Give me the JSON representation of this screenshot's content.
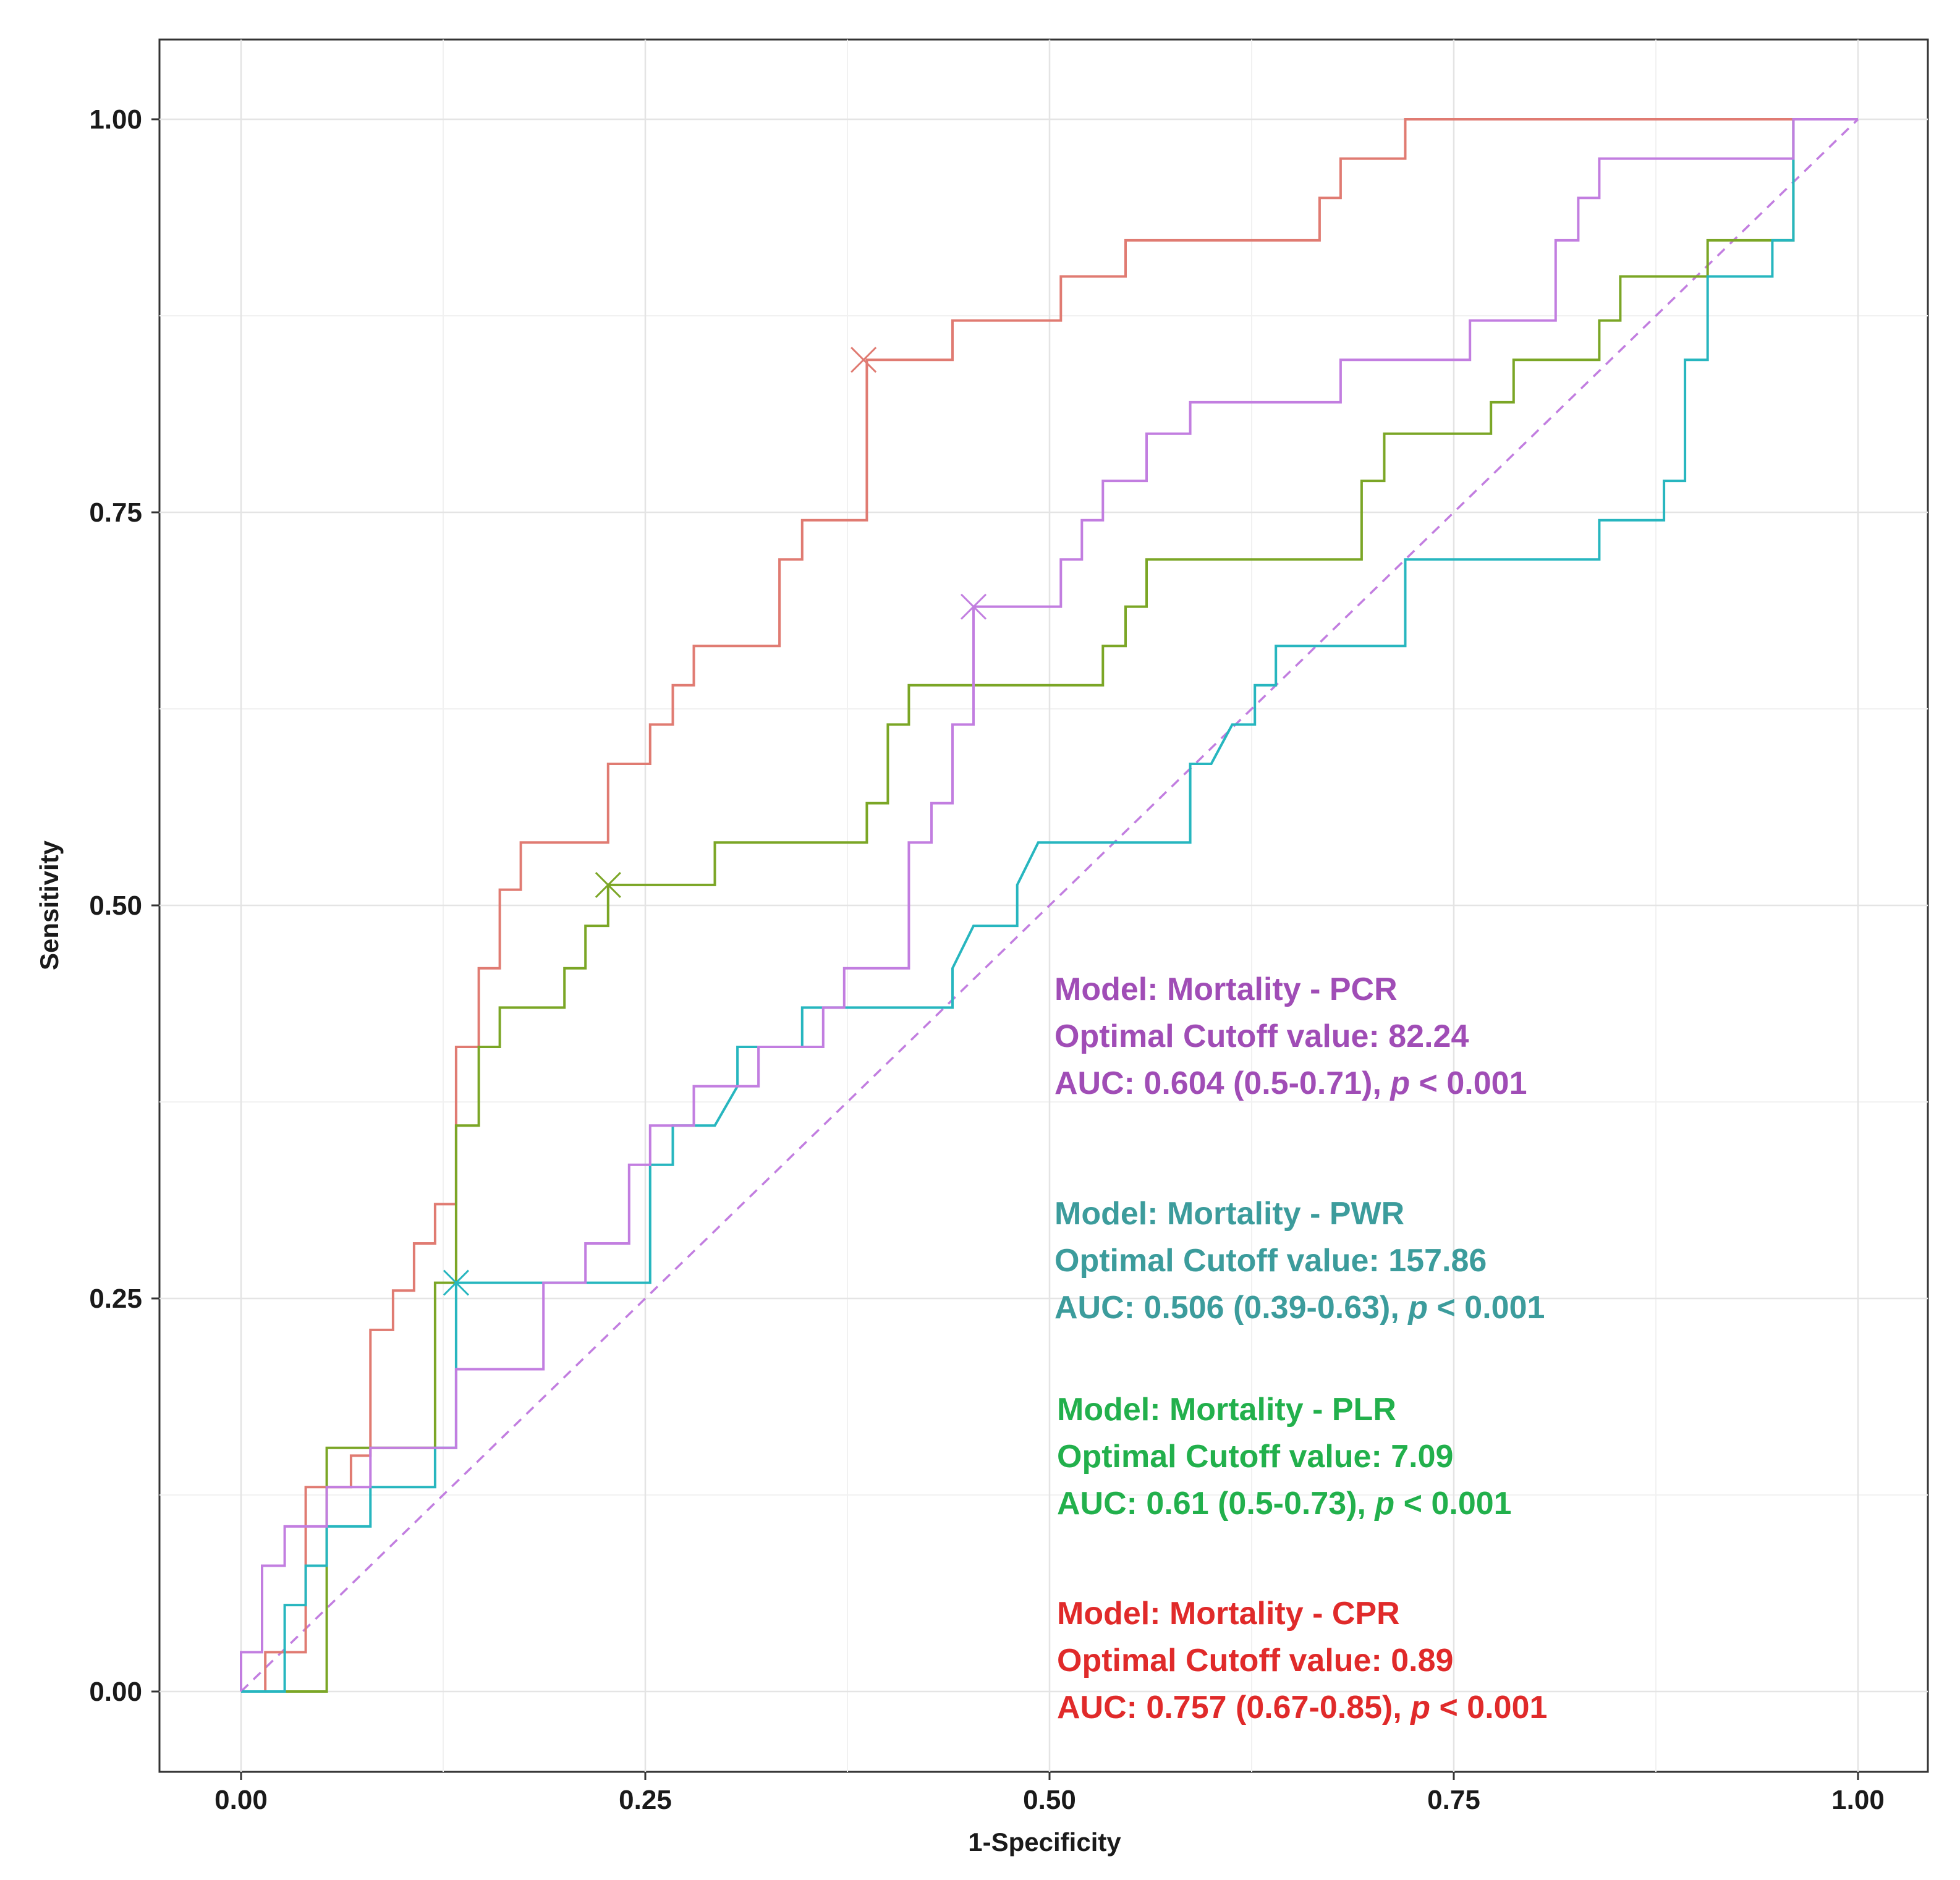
{
  "chart_data": {
    "type": "line",
    "title": "",
    "xlabel": "1-Specificity",
    "ylabel": "Sensitivity",
    "xlim": [
      0,
      1
    ],
    "ylim": [
      0,
      1
    ],
    "x_ticks": [
      "0.00",
      "0.25",
      "0.50",
      "0.75",
      "1.00"
    ],
    "y_ticks": [
      "0.00",
      "0.25",
      "0.50",
      "0.75",
      "1.00"
    ],
    "grid": true,
    "reference_line": {
      "from": [
        0,
        0
      ],
      "to": [
        1,
        1
      ],
      "style": "dashed",
      "color": "#c27ee0"
    },
    "series": [
      {
        "name": "CPR",
        "color": "#e07b72",
        "cutoff_point": [
          0.385,
          0.847
        ],
        "points": [
          [
            0,
            0
          ],
          [
            0.015,
            0
          ],
          [
            0.015,
            0.025
          ],
          [
            0.04,
            0.025
          ],
          [
            0.04,
            0.13
          ],
          [
            0.068,
            0.13
          ],
          [
            0.068,
            0.15
          ],
          [
            0.08,
            0.15
          ],
          [
            0.08,
            0.23
          ],
          [
            0.094,
            0.23
          ],
          [
            0.094,
            0.255
          ],
          [
            0.107,
            0.255
          ],
          [
            0.107,
            0.285
          ],
          [
            0.12,
            0.285
          ],
          [
            0.12,
            0.31
          ],
          [
            0.133,
            0.31
          ],
          [
            0.133,
            0.41
          ],
          [
            0.147,
            0.41
          ],
          [
            0.147,
            0.46
          ],
          [
            0.16,
            0.46
          ],
          [
            0.16,
            0.51
          ],
          [
            0.173,
            0.51
          ],
          [
            0.173,
            0.54
          ],
          [
            0.227,
            0.54
          ],
          [
            0.227,
            0.59
          ],
          [
            0.253,
            0.59
          ],
          [
            0.253,
            0.615
          ],
          [
            0.267,
            0.615
          ],
          [
            0.267,
            0.64
          ],
          [
            0.28,
            0.64
          ],
          [
            0.28,
            0.665
          ],
          [
            0.333,
            0.665
          ],
          [
            0.333,
            0.72
          ],
          [
            0.347,
            0.72
          ],
          [
            0.347,
            0.745
          ],
          [
            0.387,
            0.745
          ],
          [
            0.387,
            0.847
          ],
          [
            0.44,
            0.847
          ],
          [
            0.44,
            0.872
          ],
          [
            0.507,
            0.872
          ],
          [
            0.507,
            0.9
          ],
          [
            0.547,
            0.9
          ],
          [
            0.547,
            0.923
          ],
          [
            0.667,
            0.923
          ],
          [
            0.667,
            0.95
          ],
          [
            0.68,
            0.95
          ],
          [
            0.68,
            0.975
          ],
          [
            0.72,
            0.975
          ],
          [
            0.72,
            1
          ],
          [
            1,
            1
          ]
        ]
      },
      {
        "name": "PLR",
        "color": "#7ba626",
        "cutoff_point": [
          0.227,
          0.513
        ],
        "points": [
          [
            0,
            0
          ],
          [
            0.053,
            0
          ],
          [
            0.053,
            0.025
          ],
          [
            0.053,
            0.155
          ],
          [
            0.08,
            0.155
          ],
          [
            0.12,
            0.155
          ],
          [
            0.12,
            0.26
          ],
          [
            0.133,
            0.26
          ],
          [
            0.133,
            0.36
          ],
          [
            0.147,
            0.36
          ],
          [
            0.147,
            0.41
          ],
          [
            0.16,
            0.41
          ],
          [
            0.16,
            0.435
          ],
          [
            0.2,
            0.435
          ],
          [
            0.2,
            0.46
          ],
          [
            0.213,
            0.46
          ],
          [
            0.213,
            0.487
          ],
          [
            0.227,
            0.487
          ],
          [
            0.227,
            0.513
          ],
          [
            0.293,
            0.513
          ],
          [
            0.293,
            0.54
          ],
          [
            0.387,
            0.54
          ],
          [
            0.387,
            0.565
          ],
          [
            0.4,
            0.565
          ],
          [
            0.4,
            0.615
          ],
          [
            0.413,
            0.615
          ],
          [
            0.413,
            0.64
          ],
          [
            0.533,
            0.64
          ],
          [
            0.533,
            0.665
          ],
          [
            0.547,
            0.665
          ],
          [
            0.547,
            0.69
          ],
          [
            0.56,
            0.69
          ],
          [
            0.56,
            0.72
          ],
          [
            0.693,
            0.72
          ],
          [
            0.693,
            0.77
          ],
          [
            0.707,
            0.77
          ],
          [
            0.707,
            0.8
          ],
          [
            0.773,
            0.8
          ],
          [
            0.773,
            0.82
          ],
          [
            0.787,
            0.82
          ],
          [
            0.787,
            0.847
          ],
          [
            0.84,
            0.847
          ],
          [
            0.84,
            0.872
          ],
          [
            0.853,
            0.872
          ],
          [
            0.853,
            0.9
          ],
          [
            0.907,
            0.9
          ],
          [
            0.907,
            0.923
          ],
          [
            0.96,
            0.923
          ],
          [
            0.96,
            1
          ],
          [
            0.973,
            1
          ]
        ]
      },
      {
        "name": "PWR",
        "color": "#27b6bf",
        "cutoff_point": [
          0.133,
          0.26
        ],
        "points": [
          [
            0,
            0
          ],
          [
            0.027,
            0
          ],
          [
            0.027,
            0.055
          ],
          [
            0.04,
            0.055
          ],
          [
            0.04,
            0.08
          ],
          [
            0.053,
            0.08
          ],
          [
            0.053,
            0.105
          ],
          [
            0.08,
            0.105
          ],
          [
            0.08,
            0.13
          ],
          [
            0.12,
            0.13
          ],
          [
            0.12,
            0.155
          ],
          [
            0.133,
            0.155
          ],
          [
            0.133,
            0.26
          ],
          [
            0.253,
            0.26
          ],
          [
            0.253,
            0.335
          ],
          [
            0.267,
            0.335
          ],
          [
            0.267,
            0.36
          ],
          [
            0.293,
            0.36
          ],
          [
            0.307,
            0.385
          ],
          [
            0.307,
            0.41
          ],
          [
            0.347,
            0.41
          ],
          [
            0.347,
            0.435
          ],
          [
            0.44,
            0.435
          ],
          [
            0.44,
            0.46
          ],
          [
            0.453,
            0.487
          ],
          [
            0.48,
            0.487
          ],
          [
            0.48,
            0.513
          ],
          [
            0.493,
            0.54
          ],
          [
            0.587,
            0.54
          ],
          [
            0.587,
            0.59
          ],
          [
            0.6,
            0.59
          ],
          [
            0.613,
            0.615
          ],
          [
            0.627,
            0.615
          ],
          [
            0.627,
            0.64
          ],
          [
            0.64,
            0.64
          ],
          [
            0.64,
            0.665
          ],
          [
            0.72,
            0.665
          ],
          [
            0.72,
            0.72
          ],
          [
            0.84,
            0.72
          ],
          [
            0.84,
            0.745
          ],
          [
            0.88,
            0.745
          ],
          [
            0.88,
            0.77
          ],
          [
            0.893,
            0.77
          ],
          [
            0.893,
            0.847
          ],
          [
            0.907,
            0.847
          ],
          [
            0.907,
            0.9
          ],
          [
            0.947,
            0.9
          ],
          [
            0.947,
            0.923
          ],
          [
            0.96,
            0.923
          ],
          [
            0.96,
            1
          ],
          [
            0.973,
            1
          ]
        ]
      },
      {
        "name": "PCR",
        "color": "#c27ee0",
        "cutoff_point": [
          0.453,
          0.69
        ],
        "points": [
          [
            0,
            0
          ],
          [
            0,
            0.025
          ],
          [
            0.013,
            0.025
          ],
          [
            0.013,
            0.08
          ],
          [
            0.027,
            0.08
          ],
          [
            0.027,
            0.105
          ],
          [
            0.053,
            0.105
          ],
          [
            0.053,
            0.13
          ],
          [
            0.08,
            0.13
          ],
          [
            0.08,
            0.155
          ],
          [
            0.133,
            0.155
          ],
          [
            0.133,
            0.205
          ],
          [
            0.187,
            0.205
          ],
          [
            0.187,
            0.26
          ],
          [
            0.213,
            0.26
          ],
          [
            0.213,
            0.285
          ],
          [
            0.24,
            0.285
          ],
          [
            0.24,
            0.335
          ],
          [
            0.253,
            0.335
          ],
          [
            0.253,
            0.36
          ],
          [
            0.28,
            0.36
          ],
          [
            0.28,
            0.385
          ],
          [
            0.32,
            0.385
          ],
          [
            0.32,
            0.41
          ],
          [
            0.36,
            0.41
          ],
          [
            0.36,
            0.435
          ],
          [
            0.373,
            0.435
          ],
          [
            0.373,
            0.46
          ],
          [
            0.413,
            0.46
          ],
          [
            0.413,
            0.54
          ],
          [
            0.427,
            0.54
          ],
          [
            0.427,
            0.565
          ],
          [
            0.44,
            0.565
          ],
          [
            0.44,
            0.615
          ],
          [
            0.453,
            0.615
          ],
          [
            0.453,
            0.69
          ],
          [
            0.507,
            0.69
          ],
          [
            0.507,
            0.72
          ],
          [
            0.52,
            0.72
          ],
          [
            0.52,
            0.745
          ],
          [
            0.533,
            0.745
          ],
          [
            0.533,
            0.77
          ],
          [
            0.56,
            0.77
          ],
          [
            0.56,
            0.8
          ],
          [
            0.587,
            0.8
          ],
          [
            0.587,
            0.82
          ],
          [
            0.68,
            0.82
          ],
          [
            0.68,
            0.847
          ],
          [
            0.76,
            0.847
          ],
          [
            0.76,
            0.872
          ],
          [
            0.813,
            0.872
          ],
          [
            0.813,
            0.923
          ],
          [
            0.827,
            0.923
          ],
          [
            0.827,
            0.95
          ],
          [
            0.84,
            0.95
          ],
          [
            0.84,
            0.975
          ],
          [
            0.96,
            0.975
          ],
          [
            0.96,
            1
          ],
          [
            1,
            1
          ]
        ]
      }
    ],
    "annotations": [
      {
        "name": "PCR",
        "color": "#a04db6",
        "model": "Model: Mortality - PCR",
        "cutoff": "Optimal Cutoff value: 82.24",
        "auc": "AUC: 0.604 (0.5-0.71), ",
        "p": "p",
        "p_rest": " < 0.001"
      },
      {
        "name": "PWR",
        "color": "#3c9c9c",
        "model": "Model: Mortality - PWR",
        "cutoff": "Optimal Cutoff value: 157.86",
        "auc": "AUC: 0.506 (0.39-0.63), ",
        "p": "p",
        "p_rest": " < 0.001"
      },
      {
        "name": "PLR",
        "color": "#22b04c",
        "model": "Model: Mortality - PLR",
        "cutoff": "Optimal Cutoff value: 7.09",
        "auc": "AUC: 0.61 (0.5-0.73), ",
        "p": "p",
        "p_rest": " < 0.001"
      },
      {
        "name": "CPR",
        "color": "#e02a2a",
        "model": "Model: Mortality - CPR",
        "cutoff": "Optimal Cutoff value: 0.89",
        "auc": "AUC: 0.757 (0.67-0.85), ",
        "p": "p",
        "p_rest": " < 0.001"
      }
    ]
  }
}
